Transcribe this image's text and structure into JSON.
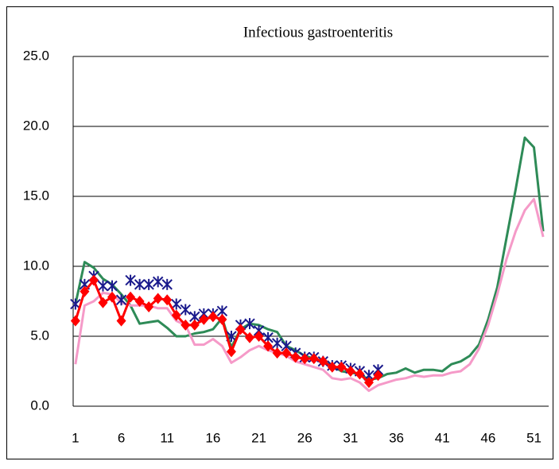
{
  "chart_data": {
    "type": "line",
    "title": "Infectious gastroenteritis",
    "x": [
      1,
      2,
      3,
      4,
      5,
      6,
      7,
      8,
      9,
      10,
      11,
      12,
      13,
      14,
      15,
      16,
      17,
      18,
      19,
      20,
      21,
      22,
      23,
      24,
      25,
      26,
      27,
      28,
      29,
      30,
      31,
      32,
      33,
      34,
      35,
      36,
      37,
      38,
      39,
      40,
      41,
      42,
      43,
      44,
      45,
      46,
      47,
      48,
      49,
      50,
      51,
      52
    ],
    "xlim": [
      0.75,
      52.6
    ],
    "xticks": [
      1,
      6,
      11,
      16,
      21,
      26,
      31,
      36,
      41,
      46,
      51
    ],
    "ylim": [
      0,
      25
    ],
    "yticks": [
      {
        "value": 0,
        "label": "0.0"
      },
      {
        "value": 5,
        "label": "5.0"
      },
      {
        "value": 10,
        "label": "10.0"
      },
      {
        "value": 15,
        "label": "15.0"
      },
      {
        "value": 20,
        "label": "20.0"
      },
      {
        "value": 25,
        "label": "25.0"
      }
    ],
    "grid": true,
    "series": [
      {
        "color": "#2e8b57",
        "line": true,
        "marker": "none",
        "values": [
          7.3,
          10.3,
          9.9,
          9.1,
          8.7,
          8.0,
          7.2,
          5.9,
          6.0,
          6.1,
          5.6,
          5.0,
          5.0,
          5.2,
          5.3,
          5.5,
          6.3,
          4.2,
          5.5,
          5.9,
          5.8,
          5.5,
          5.3,
          4.3,
          4.0,
          3.6,
          3.4,
          3.2,
          2.9,
          2.5,
          2.4,
          2.3,
          1.9,
          2.0,
          2.3,
          2.4,
          2.7,
          2.4,
          2.6,
          2.6,
          2.5,
          3.0,
          3.2,
          3.6,
          4.4,
          6.2,
          8.5,
          12.0,
          15.5,
          19.2,
          18.5,
          12.5
        ]
      },
      {
        "color": "#f59ac8",
        "line": true,
        "marker": "none",
        "values": [
          3.0,
          7.2,
          7.5,
          8.1,
          8.0,
          7.4,
          7.2,
          7.2,
          7.2,
          7.0,
          7.0,
          6.1,
          5.8,
          4.4,
          4.4,
          4.8,
          4.3,
          3.1,
          3.5,
          4.0,
          4.3,
          4.0,
          3.8,
          3.6,
          3.2,
          3.0,
          2.8,
          2.6,
          2.0,
          1.9,
          2.0,
          1.7,
          1.1,
          1.5,
          1.7,
          1.9,
          2.0,
          2.2,
          2.1,
          2.2,
          2.2,
          2.4,
          2.5,
          3.0,
          4.1,
          5.8,
          8.0,
          10.5,
          12.5,
          14.0,
          14.8,
          12.1
        ]
      },
      {
        "color": "#1a1a8c",
        "line": false,
        "marker": "star",
        "values": [
          7.3,
          8.7,
          9.3,
          8.6,
          8.6,
          7.6,
          9.0,
          8.7,
          8.7,
          8.9,
          8.7,
          7.3,
          6.9,
          6.4,
          6.6,
          6.6,
          6.8,
          5.0,
          5.8,
          5.9,
          5.4,
          4.9,
          4.5,
          4.3,
          3.8,
          3.5,
          3.5,
          3.2,
          2.9,
          2.9,
          2.7,
          2.5,
          2.2,
          2.6,
          null,
          null,
          null,
          null,
          null,
          null,
          null,
          null,
          null,
          null,
          null,
          null,
          null,
          null,
          null,
          null,
          null,
          null
        ]
      },
      {
        "color": "#ff0000",
        "line": true,
        "marker": "diamond",
        "values": [
          6.1,
          8.2,
          9.0,
          7.4,
          7.8,
          6.1,
          7.8,
          7.5,
          7.1,
          7.7,
          7.6,
          6.5,
          5.8,
          5.8,
          6.2,
          6.4,
          6.2,
          3.9,
          5.5,
          4.9,
          5.0,
          4.3,
          3.8,
          3.8,
          3.5,
          3.4,
          3.4,
          3.2,
          2.8,
          2.8,
          2.5,
          2.3,
          1.7,
          2.2,
          null,
          null,
          null,
          null,
          null,
          null,
          null,
          null,
          null,
          null,
          null,
          null,
          null,
          null,
          null,
          null,
          null,
          null
        ]
      }
    ]
  }
}
